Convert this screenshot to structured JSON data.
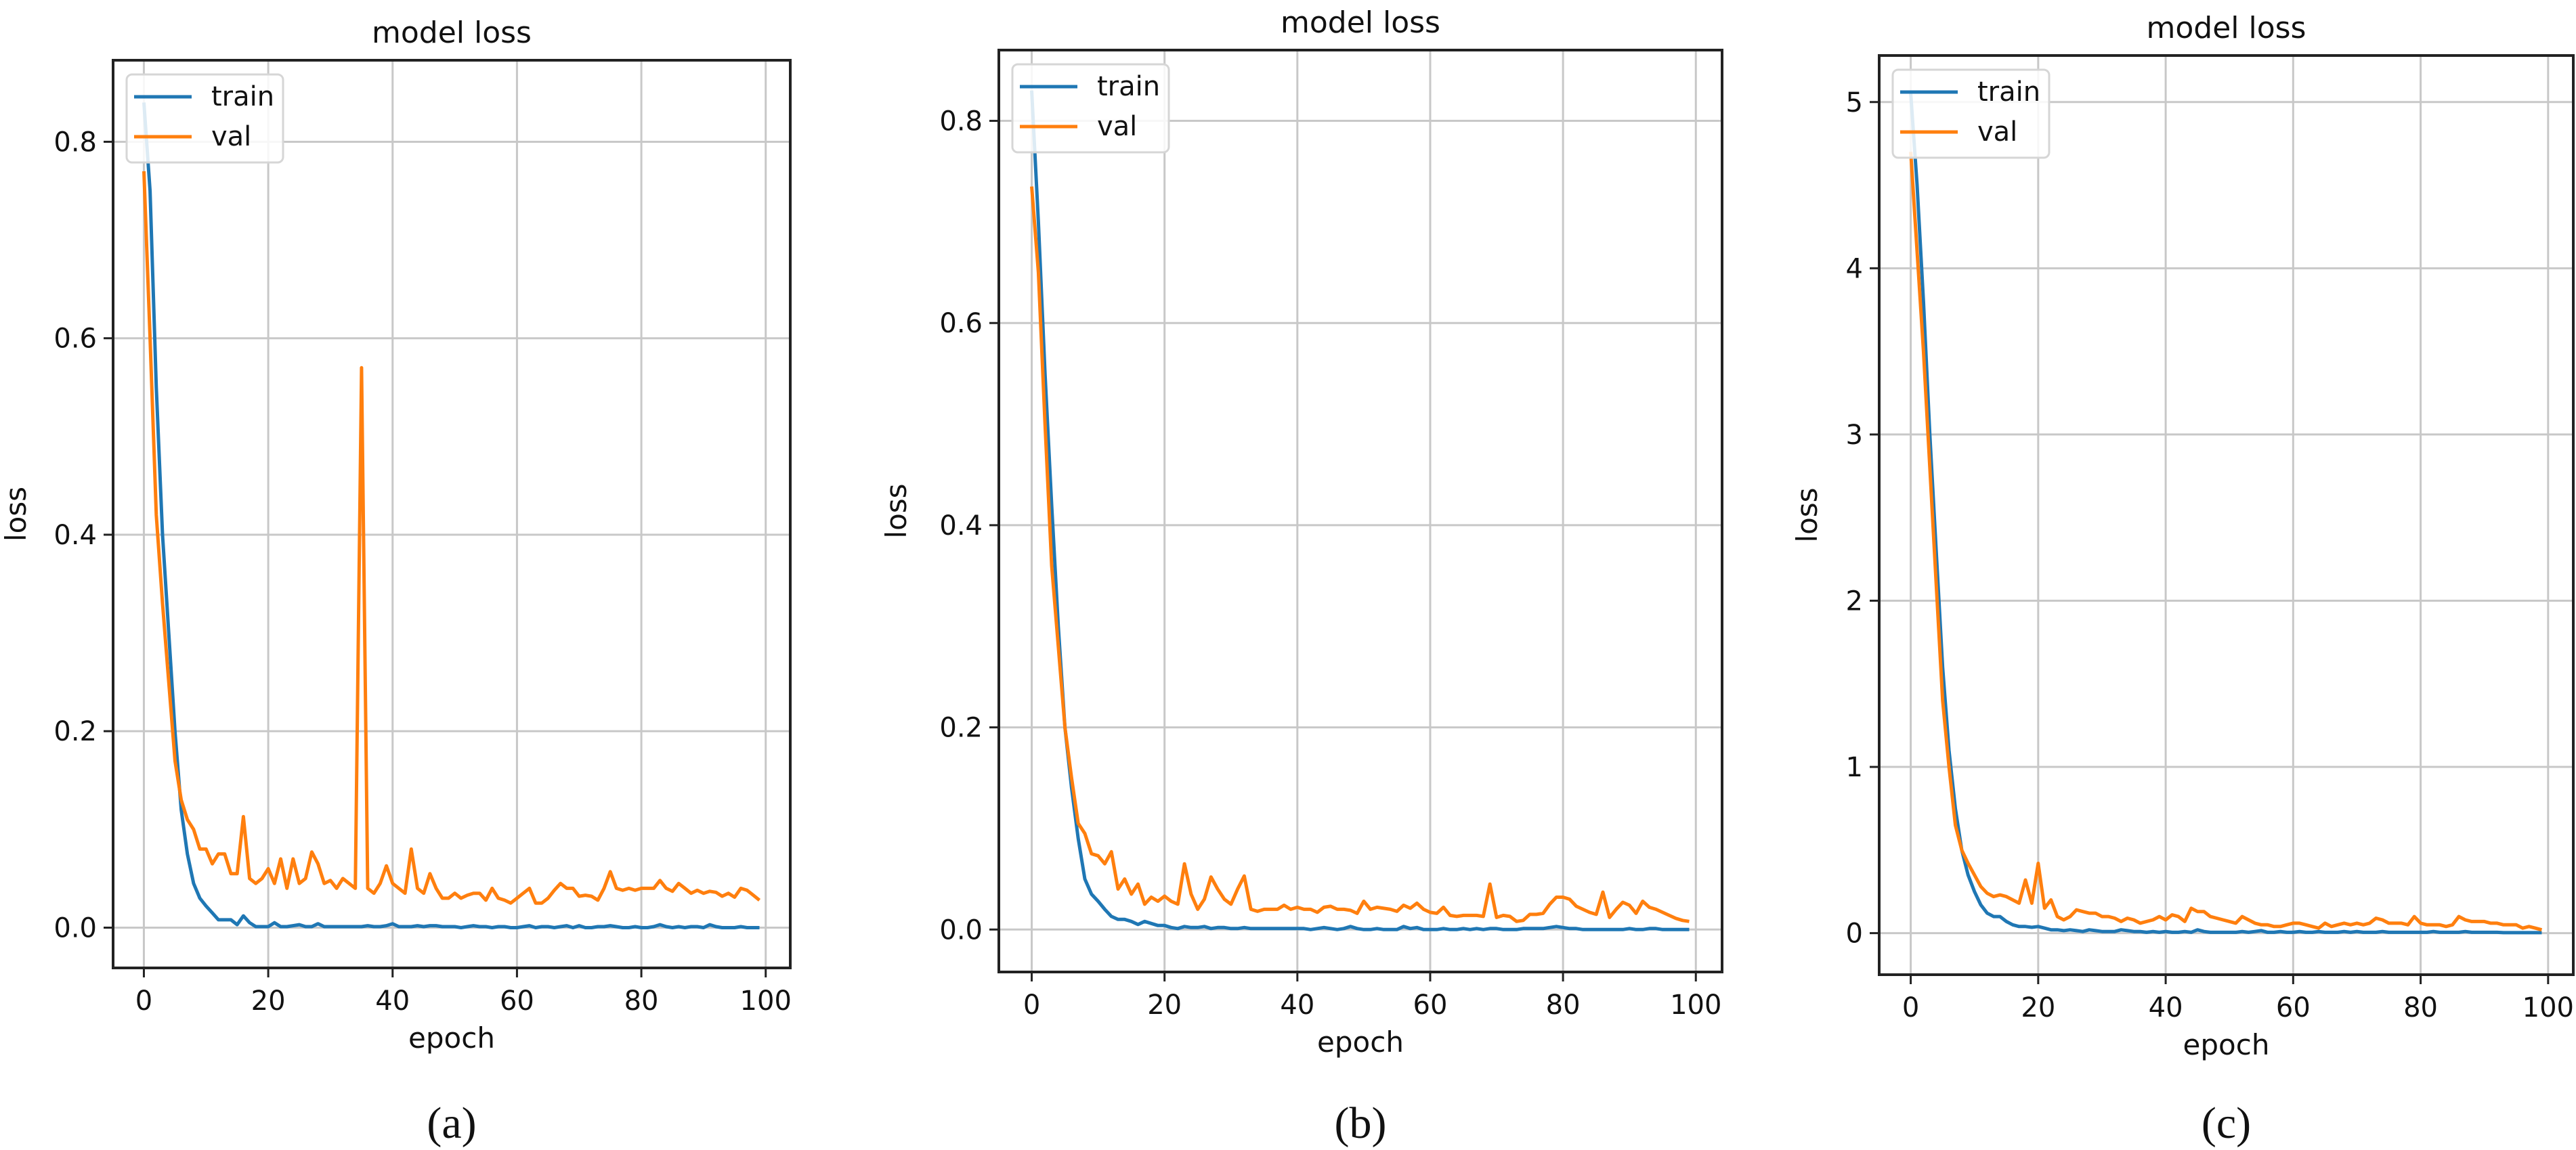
{
  "colors": {
    "train": "#1f77b4",
    "val": "#ff7f0e",
    "grid": "#c8c8c8",
    "axes": "#222222"
  },
  "chart_data": [
    {
      "type": "line",
      "caption": "(a)",
      "title": "model loss",
      "xlabel": "epoch",
      "ylabel": "loss",
      "xlim": [
        -4.95,
        103.95
      ],
      "ylim": [
        -0.041,
        0.883
      ],
      "xticks": [
        0,
        20,
        40,
        60,
        80,
        100
      ],
      "xtick_labels": [
        "0",
        "20",
        "40",
        "60",
        "80",
        "100"
      ],
      "yticks": [
        0,
        0.2,
        0.4,
        0.6,
        0.8
      ],
      "ytick_labels": [
        "0.0",
        "0.2",
        "0.4",
        "0.6",
        "0.8"
      ],
      "grid": true,
      "legend": "upper-left",
      "series": [
        {
          "name": "train",
          "values": [
            0.84,
            0.75,
            0.55,
            0.4,
            0.3,
            0.2,
            0.12,
            0.075,
            0.045,
            0.03,
            0.022,
            0.015,
            0.008,
            0.008,
            0.008,
            0.003,
            0.012,
            0.005,
            0.001,
            0.001,
            0.001,
            0.005,
            0.001,
            0.001,
            0.002,
            0.003,
            0.001,
            0.001,
            0.004,
            0.001,
            0.001,
            0.001,
            0.001,
            0.001,
            0.001,
            0.001,
            0.002,
            0.001,
            0.001,
            0.002,
            0.004,
            0.001,
            0.001,
            0.001,
            0.002,
            0.001,
            0.002,
            0.002,
            0.001,
            0.001,
            0.001,
            0.0,
            0.001,
            0.002,
            0.001,
            0.001,
            0.0,
            0.001,
            0.001,
            0.0,
            0.0,
            0.001,
            0.002,
            0.0,
            0.001,
            0.001,
            0.0,
            0.001,
            0.002,
            0.0,
            0.002,
            0.0,
            0.0,
            0.001,
            0.001,
            0.002,
            0.001,
            0.0,
            0.0,
            0.001,
            0.0,
            0.0,
            0.001,
            0.003,
            0.001,
            0.0,
            0.001,
            0.0,
            0.001,
            0.001,
            0.0,
            0.003,
            0.001,
            0.0,
            0.0,
            0.0,
            0.001,
            0.0,
            0.0,
            0.0
          ]
        },
        {
          "name": "val",
          "values": [
            0.77,
            0.6,
            0.42,
            0.33,
            0.25,
            0.17,
            0.13,
            0.11,
            0.1,
            0.08,
            0.08,
            0.065,
            0.075,
            0.075,
            0.055,
            0.055,
            0.113,
            0.05,
            0.045,
            0.05,
            0.06,
            0.045,
            0.07,
            0.04,
            0.07,
            0.045,
            0.05,
            0.077,
            0.065,
            0.045,
            0.048,
            0.04,
            0.05,
            0.045,
            0.04,
            0.57,
            0.04,
            0.035,
            0.045,
            0.063,
            0.045,
            0.04,
            0.035,
            0.08,
            0.04,
            0.035,
            0.055,
            0.04,
            0.03,
            0.03,
            0.035,
            0.03,
            0.033,
            0.035,
            0.035,
            0.028,
            0.04,
            0.03,
            0.028,
            0.025,
            0.03,
            0.035,
            0.04,
            0.025,
            0.025,
            0.03,
            0.038,
            0.045,
            0.04,
            0.04,
            0.032,
            0.033,
            0.032,
            0.028,
            0.04,
            0.057,
            0.04,
            0.038,
            0.04,
            0.038,
            0.04,
            0.04,
            0.04,
            0.048,
            0.04,
            0.037,
            0.045,
            0.04,
            0.035,
            0.038,
            0.035,
            0.037,
            0.036,
            0.032,
            0.035,
            0.031,
            0.04,
            0.038,
            0.033,
            0.028
          ]
        }
      ]
    },
    {
      "type": "line",
      "caption": "(b)",
      "title": "model loss",
      "xlabel": "epoch",
      "ylabel": "loss",
      "xlim": [
        -4.95,
        103.95
      ],
      "ylim": [
        -0.042,
        0.87
      ],
      "xticks": [
        0,
        20,
        40,
        60,
        80,
        100
      ],
      "xtick_labels": [
        "0",
        "20",
        "40",
        "60",
        "80",
        "100"
      ],
      "yticks": [
        0,
        0.2,
        0.4,
        0.6,
        0.8
      ],
      "ytick_labels": [
        "0.0",
        "0.2",
        "0.4",
        "0.6",
        "0.8"
      ],
      "grid": true,
      "legend": "upper-left",
      "series": [
        {
          "name": "train",
          "values": [
            0.83,
            0.7,
            0.55,
            0.42,
            0.3,
            0.2,
            0.14,
            0.09,
            0.05,
            0.035,
            0.028,
            0.02,
            0.013,
            0.01,
            0.01,
            0.008,
            0.005,
            0.008,
            0.006,
            0.004,
            0.004,
            0.002,
            0.001,
            0.003,
            0.002,
            0.002,
            0.003,
            0.001,
            0.002,
            0.002,
            0.001,
            0.001,
            0.002,
            0.001,
            0.001,
            0.001,
            0.001,
            0.001,
            0.001,
            0.001,
            0.001,
            0.001,
            0.0,
            0.001,
            0.002,
            0.001,
            0.0,
            0.001,
            0.003,
            0.001,
            0.0,
            0.0,
            0.001,
            0.0,
            0.0,
            0.0,
            0.003,
            0.001,
            0.002,
            0.0,
            0.0,
            0.0,
            0.001,
            0.0,
            0.0,
            0.001,
            0.0,
            0.001,
            0.0,
            0.001,
            0.001,
            0.0,
            0.0,
            0.0,
            0.001,
            0.001,
            0.001,
            0.001,
            0.002,
            0.003,
            0.002,
            0.001,
            0.001,
            0.0,
            0.0,
            0.0,
            0.0,
            0.0,
            0.0,
            0.0,
            0.001,
            0.0,
            0.0,
            0.001,
            0.001,
            0.0,
            0.0,
            0.0,
            0.0,
            0.0
          ]
        },
        {
          "name": "val",
          "values": [
            0.735,
            0.65,
            0.5,
            0.36,
            0.28,
            0.2,
            0.15,
            0.105,
            0.095,
            0.075,
            0.073,
            0.065,
            0.077,
            0.04,
            0.05,
            0.035,
            0.045,
            0.025,
            0.032,
            0.028,
            0.033,
            0.028,
            0.025,
            0.065,
            0.035,
            0.02,
            0.03,
            0.052,
            0.04,
            0.03,
            0.025,
            0.04,
            0.053,
            0.02,
            0.018,
            0.02,
            0.02,
            0.02,
            0.024,
            0.02,
            0.022,
            0.02,
            0.02,
            0.017,
            0.022,
            0.023,
            0.02,
            0.02,
            0.019,
            0.016,
            0.028,
            0.02,
            0.022,
            0.021,
            0.02,
            0.018,
            0.024,
            0.021,
            0.026,
            0.02,
            0.017,
            0.016,
            0.022,
            0.014,
            0.013,
            0.014,
            0.014,
            0.014,
            0.013,
            0.045,
            0.012,
            0.014,
            0.013,
            0.008,
            0.009,
            0.015,
            0.015,
            0.016,
            0.025,
            0.032,
            0.032,
            0.03,
            0.023,
            0.02,
            0.017,
            0.015,
            0.037,
            0.012,
            0.02,
            0.027,
            0.024,
            0.016,
            0.028,
            0.022,
            0.02,
            0.017,
            0.014,
            0.011,
            0.009,
            0.008
          ]
        }
      ]
    },
    {
      "type": "line",
      "caption": "(c)",
      "title": "model loss",
      "xlabel": "epoch",
      "ylabel": "loss",
      "xlim": [
        -4.95,
        103.95
      ],
      "ylim": [
        -0.25,
        5.28
      ],
      "xticks": [
        0,
        20,
        40,
        60,
        80,
        100
      ],
      "xtick_labels": [
        "0",
        "20",
        "40",
        "60",
        "80",
        "100"
      ],
      "yticks": [
        0,
        1,
        2,
        3,
        4,
        5
      ],
      "ytick_labels": [
        "0",
        "1",
        "2",
        "3",
        "4",
        "5"
      ],
      "grid": true,
      "legend": "upper-left",
      "series": [
        {
          "name": "train",
          "values": [
            5.05,
            4.5,
            3.8,
            3.0,
            2.3,
            1.6,
            1.1,
            0.75,
            0.5,
            0.35,
            0.25,
            0.17,
            0.12,
            0.1,
            0.1,
            0.07,
            0.05,
            0.04,
            0.04,
            0.035,
            0.04,
            0.03,
            0.02,
            0.02,
            0.015,
            0.02,
            0.015,
            0.01,
            0.02,
            0.015,
            0.01,
            0.01,
            0.01,
            0.02,
            0.015,
            0.01,
            0.01,
            0.005,
            0.01,
            0.005,
            0.01,
            0.005,
            0.005,
            0.01,
            0.005,
            0.02,
            0.01,
            0.005,
            0.005,
            0.005,
            0.005,
            0.005,
            0.01,
            0.005,
            0.01,
            0.015,
            0.005,
            0.005,
            0.01,
            0.005,
            0.005,
            0.01,
            0.005,
            0.005,
            0.01,
            0.005,
            0.005,
            0.005,
            0.01,
            0.005,
            0.01,
            0.005,
            0.005,
            0.005,
            0.01,
            0.005,
            0.005,
            0.005,
            0.005,
            0.005,
            0.005,
            0.005,
            0.01,
            0.005,
            0.005,
            0.005,
            0.005,
            0.01,
            0.005,
            0.005,
            0.005,
            0.005,
            0.005,
            0.003,
            0.003,
            0.003,
            0.003,
            0.003,
            0.003,
            0.003
          ]
        },
        {
          "name": "val",
          "values": [
            4.7,
            4.1,
            3.5,
            2.8,
            2.1,
            1.4,
            1.0,
            0.65,
            0.5,
            0.42,
            0.35,
            0.28,
            0.24,
            0.22,
            0.23,
            0.22,
            0.2,
            0.18,
            0.32,
            0.18,
            0.42,
            0.15,
            0.2,
            0.1,
            0.08,
            0.1,
            0.14,
            0.13,
            0.12,
            0.12,
            0.1,
            0.1,
            0.09,
            0.07,
            0.09,
            0.08,
            0.06,
            0.07,
            0.08,
            0.1,
            0.08,
            0.11,
            0.1,
            0.07,
            0.15,
            0.13,
            0.13,
            0.1,
            0.09,
            0.08,
            0.07,
            0.06,
            0.1,
            0.08,
            0.06,
            0.05,
            0.05,
            0.04,
            0.04,
            0.05,
            0.06,
            0.06,
            0.05,
            0.04,
            0.03,
            0.06,
            0.04,
            0.05,
            0.06,
            0.05,
            0.06,
            0.05,
            0.06,
            0.09,
            0.08,
            0.06,
            0.06,
            0.06,
            0.05,
            0.1,
            0.06,
            0.05,
            0.05,
            0.05,
            0.04,
            0.05,
            0.1,
            0.08,
            0.07,
            0.07,
            0.07,
            0.06,
            0.06,
            0.05,
            0.05,
            0.05,
            0.03,
            0.04,
            0.03,
            0.02
          ]
        }
      ]
    }
  ]
}
